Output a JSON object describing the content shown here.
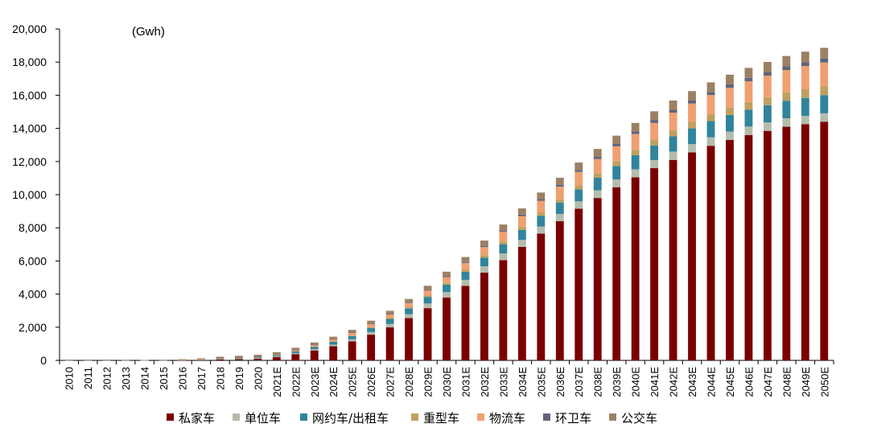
{
  "chart_data": {
    "type": "bar",
    "stacked": true,
    "unit_label": "(Gwh)",
    "ylim": [
      0,
      20000
    ],
    "yticks": [
      0,
      2000,
      4000,
      6000,
      8000,
      10000,
      12000,
      14000,
      16000,
      18000,
      20000
    ],
    "ytick_labels": [
      "0",
      "2,000",
      "4,000",
      "6,000",
      "8,000",
      "10,000",
      "12,000",
      "14,000",
      "16,000",
      "18,000",
      "20,000"
    ],
    "legend_position": "bottom",
    "categories": [
      "2010",
      "2011",
      "2012",
      "2013",
      "2014",
      "2015",
      "2016",
      "2017",
      "2018",
      "2019",
      "2020",
      "2021E",
      "2022E",
      "2023E",
      "2024E",
      "2025E",
      "2026E",
      "2027E",
      "2028E",
      "2029E",
      "2030E",
      "2031E",
      "2032E",
      "2033E",
      "2034E",
      "2035E",
      "2036E",
      "2037E",
      "2038E",
      "2039E",
      "2040E",
      "2041E",
      "2042E",
      "2043E",
      "2044E",
      "2045E",
      "2046E",
      "2047E",
      "2048E",
      "2049E",
      "2050E"
    ],
    "series": [
      {
        "name": "私家车",
        "color": "#7a0000",
        "values": [
          0,
          0,
          0,
          0,
          5,
          10,
          20,
          30,
          60,
          80,
          100,
          200,
          380,
          600,
          850,
          1150,
          1550,
          2000,
          2550,
          3150,
          3800,
          4500,
          5300,
          6050,
          6850,
          7650,
          8400,
          9150,
          9800,
          10450,
          11050,
          11600,
          12100,
          12550,
          12950,
          13300,
          13600,
          13850,
          14100,
          14250,
          14400
        ]
      },
      {
        "name": "单位车",
        "color": "#b4bcac",
        "values": [
          0,
          0,
          0,
          0,
          2,
          4,
          8,
          12,
          20,
          25,
          30,
          40,
          60,
          80,
          100,
          120,
          160,
          200,
          240,
          280,
          320,
          360,
          380,
          400,
          420,
          430,
          440,
          450,
          460,
          470,
          480,
          490,
          500,
          500,
          510,
          510,
          510,
          510,
          510,
          510,
          510
        ]
      },
      {
        "name": "网约车/出租车",
        "color": "#31849b",
        "values": [
          0,
          0,
          0,
          3,
          5,
          8,
          12,
          25,
          40,
          50,
          60,
          80,
          110,
          140,
          170,
          200,
          250,
          300,
          350,
          400,
          450,
          480,
          520,
          560,
          600,
          650,
          680,
          720,
          760,
          800,
          850,
          880,
          920,
          950,
          980,
          1000,
          1020,
          1040,
          1060,
          1080,
          1100
        ]
      },
      {
        "name": "重型车",
        "color": "#c0a060",
        "values": [
          0,
          0,
          0,
          0,
          0,
          0,
          2,
          3,
          5,
          5,
          5,
          10,
          15,
          20,
          25,
          30,
          40,
          50,
          60,
          80,
          100,
          120,
          140,
          160,
          180,
          200,
          220,
          250,
          280,
          300,
          330,
          360,
          380,
          400,
          420,
          440,
          460,
          480,
          500,
          520,
          540
        ]
      },
      {
        "name": "物流车",
        "color": "#f0a070",
        "values": [
          0,
          0,
          0,
          0,
          2,
          3,
          5,
          8,
          12,
          15,
          20,
          40,
          60,
          90,
          120,
          160,
          190,
          210,
          250,
          300,
          350,
          420,
          500,
          600,
          650,
          700,
          750,
          800,
          850,
          900,
          950,
          1000,
          1050,
          1100,
          1150,
          1200,
          1250,
          1300,
          1350,
          1400,
          1420
        ]
      },
      {
        "name": "环卫车",
        "color": "#60647a",
        "values": [
          0,
          0,
          0,
          0,
          0,
          0,
          0,
          0,
          2,
          3,
          4,
          5,
          8,
          10,
          15,
          20,
          25,
          30,
          35,
          40,
          50,
          60,
          70,
          80,
          90,
          100,
          110,
          120,
          130,
          140,
          150,
          160,
          170,
          180,
          190,
          200,
          210,
          220,
          230,
          240,
          250
        ]
      },
      {
        "name": "公交车",
        "color": "#9c8064",
        "values": [
          5,
          5,
          5,
          7,
          10,
          20,
          30,
          50,
          80,
          100,
          120,
          120,
          130,
          140,
          150,
          160,
          180,
          200,
          220,
          250,
          280,
          300,
          320,
          350,
          380,
          400,
          420,
          450,
          480,
          500,
          520,
          540,
          560,
          570,
          580,
          590,
          600,
          610,
          620,
          630,
          640
        ]
      }
    ]
  }
}
